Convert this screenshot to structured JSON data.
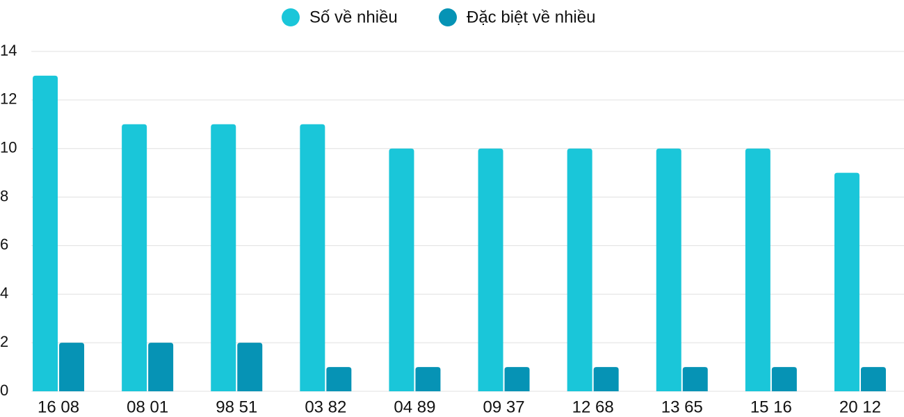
{
  "chart_data": {
    "type": "bar",
    "categories": [
      "16 08",
      "08 01",
      "98 51",
      "03 82",
      "04 89",
      "09 37",
      "12 68",
      "13 65",
      "15 16",
      "20 12"
    ],
    "series": [
      {
        "name": "Số về nhiều",
        "color": "#1ac6d9",
        "values": [
          13,
          11,
          11,
          11,
          10,
          10,
          10,
          10,
          10,
          9
        ]
      },
      {
        "name": "Đặc biệt về nhiều",
        "color": "#0693b5",
        "values": [
          2,
          2,
          2,
          1,
          1,
          1,
          1,
          1,
          1,
          1
        ]
      }
    ],
    "ylim": [
      0,
      14
    ],
    "yticks": [
      0,
      2,
      4,
      6,
      8,
      10,
      12,
      14
    ],
    "grid": true,
    "legend": "top"
  }
}
